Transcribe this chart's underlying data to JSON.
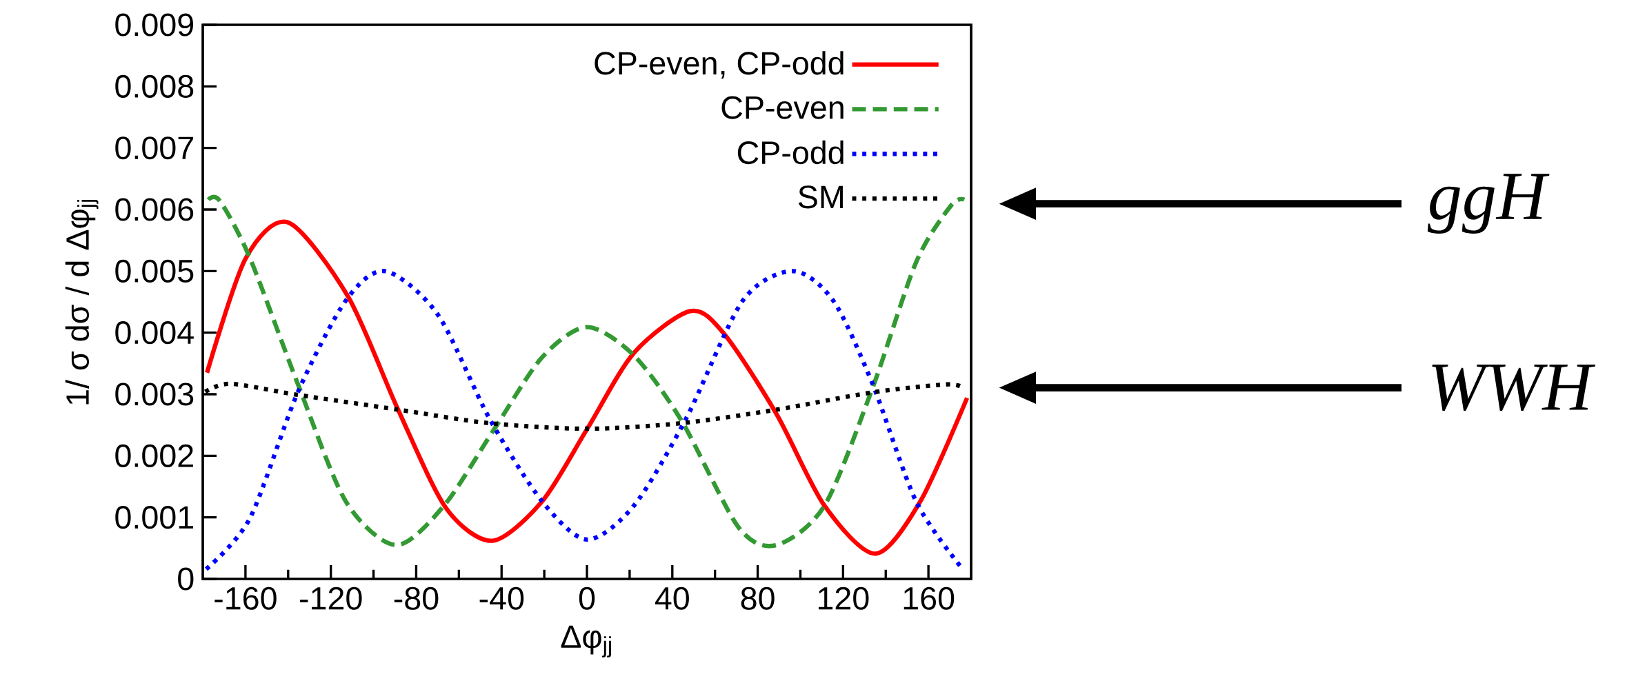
{
  "chart_data": {
    "type": "line",
    "xlabel": "Δφ$_{jj}$",
    "ylabel": "1/ σ dσ / d Δφ$_{jj}$",
    "xlim": [
      -180,
      180
    ],
    "ylim": [
      0,
      0.009
    ],
    "xticks": [
      -160,
      -120,
      -80,
      -40,
      0,
      40,
      80,
      120,
      160
    ],
    "yticks": [
      0,
      0.001,
      0.002,
      0.003,
      0.004,
      0.005,
      0.006,
      0.007,
      0.008,
      0.009
    ],
    "legend": "top right",
    "series": [
      {
        "name": "CP-even, CP-odd",
        "color": "#ff0000",
        "line_style": "solid",
        "x": [
          -178,
          -160,
          -140,
          -112,
          -88.5,
          -66,
          -44.3,
          -21,
          0,
          22,
          48.4,
          64.3,
          88.8,
          111.3,
          135.2,
          156.2,
          178.1
        ],
        "values": [
          0.00335,
          0.0052,
          0.00579,
          0.00459,
          0.00275,
          0.00115,
          0.00062,
          0.00126,
          0.00243,
          0.00367,
          0.00435,
          0.00398,
          0.00268,
          0.00119,
          0.00041,
          0.00126,
          0.00294
        ]
      },
      {
        "name": "CP-even",
        "color": "#339933",
        "line_style": "dashed",
        "x": [
          -177.4,
          -172,
          -158,
          -135.5,
          -113,
          -89.5,
          -67,
          -43.5,
          -21,
          0,
          22,
          44.3,
          71,
          88.8,
          111.3,
          133.8,
          154.3,
          170.7,
          176.8
        ],
        "values": [
          0.00616,
          0.00614,
          0.00522,
          0.00317,
          0.00126,
          0.00055,
          0.00119,
          0.00243,
          0.0036,
          0.00409,
          0.00363,
          0.00257,
          0.00084,
          0.00055,
          0.00119,
          0.0031,
          0.00515,
          0.00607,
          0.00616
        ]
      },
      {
        "name": "CP-odd",
        "color": "#0000ff",
        "line_style": "dotted",
        "x": [
          -178.4,
          -158,
          -135.5,
          -113,
          -94.6,
          -70,
          -45.6,
          -21,
          0,
          22,
          46.4,
          73,
          96.4,
          115.4,
          133.8,
          154.2,
          175.1
        ],
        "values": [
          0.00016,
          0.00098,
          0.00303,
          0.00452,
          0.005,
          0.0043,
          0.0026,
          0.00126,
          0.00064,
          0.00119,
          0.0026,
          0.00452,
          0.005,
          0.00452,
          0.00317,
          0.00126,
          0.0002
        ]
      },
      {
        "name": "SM",
        "color": "#000000",
        "line_style": "dotted",
        "x": [
          -178.8,
          -167,
          -135.5,
          -88.5,
          -45.6,
          0,
          44.3,
          88.8,
          133.8,
          168.5,
          176.6
        ],
        "values": [
          0.00304,
          0.00317,
          0.00299,
          0.00275,
          0.00253,
          0.00244,
          0.00253,
          0.00275,
          0.00303,
          0.00316,
          0.0031
        ]
      }
    ],
    "annotations": [
      "ggH",
      "WWH"
    ]
  }
}
